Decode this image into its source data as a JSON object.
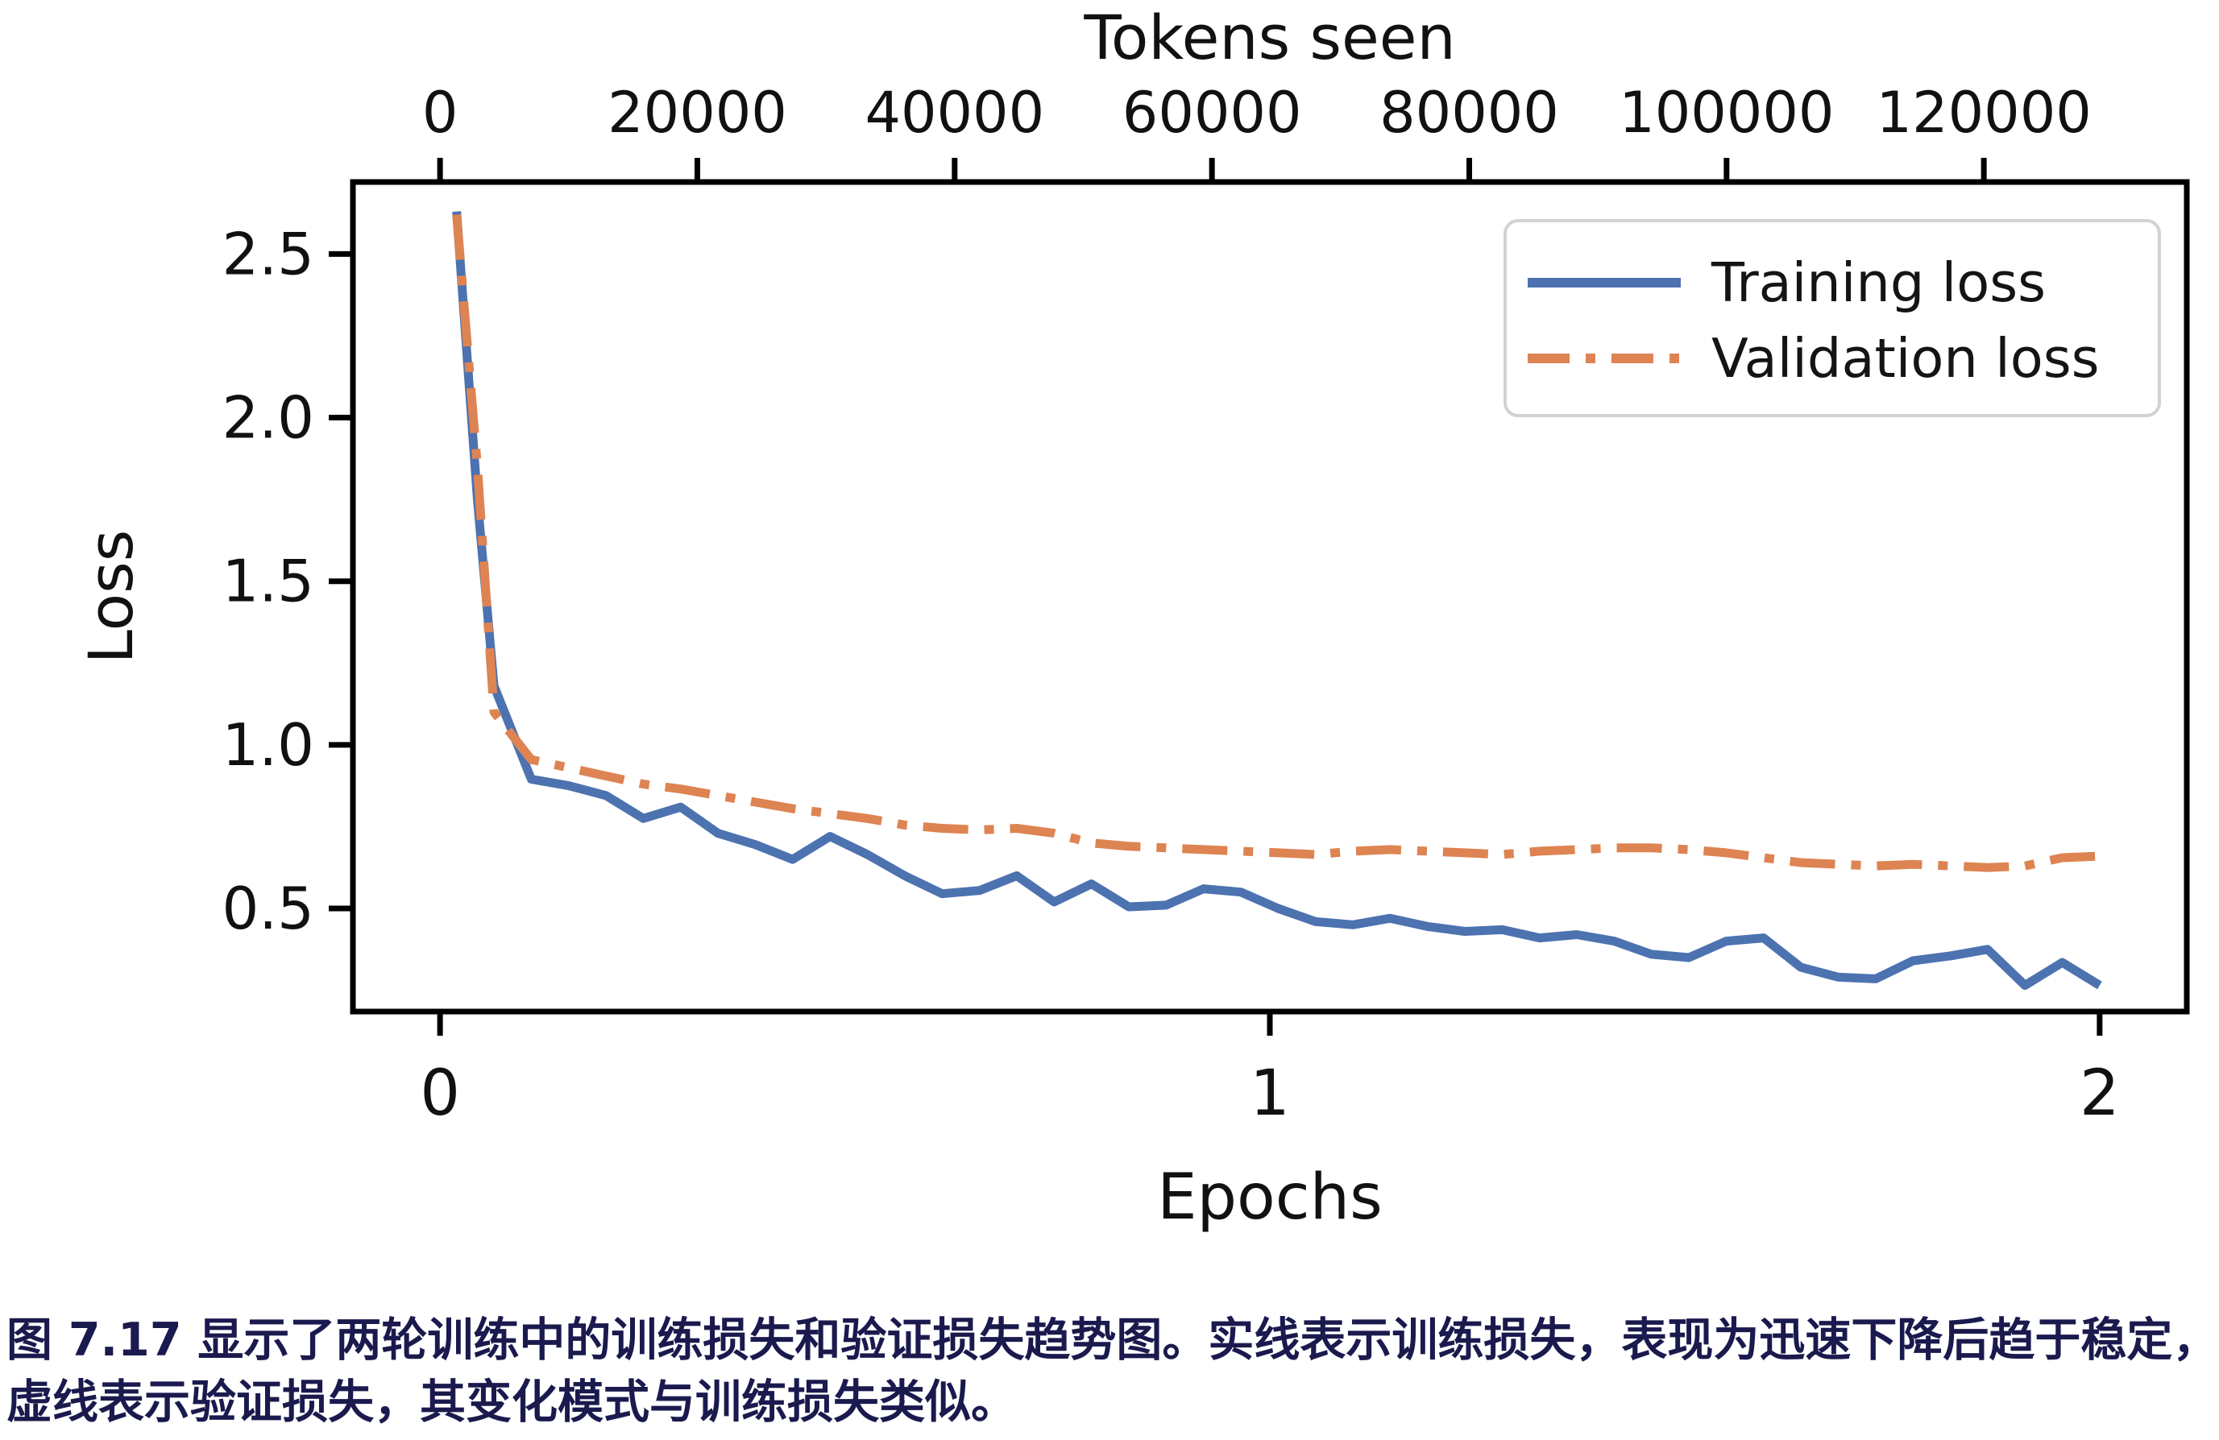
{
  "caption": {
    "line1": "图 7.17 显示了两轮训练中的训练损失和验证损失趋势图。实线表示训练损失，表现为迅速下降后趋于稳定，",
    "line2": "虚线表示验证损失，其变化模式与训练损失类似。",
    "color": "#1a1a4e"
  },
  "chart_data": {
    "type": "line",
    "top_axis_title": "Tokens seen",
    "xlabel": "Epochs",
    "ylabel": "Loss",
    "grid": false,
    "legend_position": "upper right",
    "x_range": [
      -0.105,
      2.105
    ],
    "y_range": [
      0.185,
      2.72
    ],
    "tokens_per_epoch": 64500,
    "x_ticks": [
      {
        "v": 0,
        "label": "0"
      },
      {
        "v": 1,
        "label": "1"
      },
      {
        "v": 2,
        "label": "2"
      }
    ],
    "y_ticks": [
      {
        "v": 0.5,
        "label": "0.5"
      },
      {
        "v": 1.0,
        "label": "1.0"
      },
      {
        "v": 1.5,
        "label": "1.5"
      },
      {
        "v": 2.0,
        "label": "2.0"
      },
      {
        "v": 2.5,
        "label": "2.5"
      }
    ],
    "top_ticks": [
      {
        "v": 0,
        "label": "0"
      },
      {
        "v": 20000,
        "label": "20000"
      },
      {
        "v": 40000,
        "label": "40000"
      },
      {
        "v": 60000,
        "label": "60000"
      },
      {
        "v": 80000,
        "label": "80000"
      },
      {
        "v": 100000,
        "label": "100000"
      },
      {
        "v": 120000,
        "label": "120000"
      }
    ],
    "series": [
      {
        "name": "Training loss",
        "color": "#4c72b0",
        "style": "solid",
        "x": [
          0.02,
          0.045,
          0.065,
          0.11,
          0.155,
          0.2,
          0.245,
          0.29,
          0.335,
          0.38,
          0.425,
          0.47,
          0.515,
          0.56,
          0.605,
          0.65,
          0.695,
          0.74,
          0.785,
          0.83,
          0.875,
          0.92,
          0.965,
          1.01,
          1.055,
          1.1,
          1.145,
          1.19,
          1.235,
          1.28,
          1.325,
          1.37,
          1.415,
          1.46,
          1.505,
          1.55,
          1.595,
          1.64,
          1.685,
          1.73,
          1.775,
          1.82,
          1.865,
          1.91,
          1.955,
          2.0
        ],
        "y": [
          2.63,
          1.75,
          1.18,
          0.895,
          0.875,
          0.845,
          0.775,
          0.81,
          0.73,
          0.695,
          0.65,
          0.72,
          0.665,
          0.6,
          0.545,
          0.555,
          0.6,
          0.52,
          0.575,
          0.505,
          0.51,
          0.56,
          0.55,
          0.5,
          0.46,
          0.45,
          0.47,
          0.445,
          0.43,
          0.435,
          0.41,
          0.42,
          0.4,
          0.36,
          0.35,
          0.4,
          0.41,
          0.32,
          0.29,
          0.285,
          0.34,
          0.355,
          0.375,
          0.265,
          0.335,
          0.265
        ]
      },
      {
        "name": "Validation loss",
        "color": "#dd8452",
        "style": "dash-dot",
        "x": [
          0.02,
          0.045,
          0.065,
          0.11,
          0.155,
          0.2,
          0.245,
          0.29,
          0.335,
          0.38,
          0.425,
          0.47,
          0.515,
          0.56,
          0.605,
          0.65,
          0.695,
          0.74,
          0.785,
          0.83,
          0.875,
          0.92,
          0.965,
          1.01,
          1.055,
          1.1,
          1.145,
          1.19,
          1.235,
          1.28,
          1.325,
          1.37,
          1.415,
          1.46,
          1.505,
          1.55,
          1.595,
          1.64,
          1.685,
          1.73,
          1.775,
          1.82,
          1.865,
          1.91,
          1.955,
          2.0
        ],
        "y": [
          2.62,
          1.85,
          1.1,
          0.955,
          0.93,
          0.905,
          0.88,
          0.865,
          0.845,
          0.825,
          0.805,
          0.79,
          0.775,
          0.755,
          0.745,
          0.74,
          0.745,
          0.73,
          0.7,
          0.69,
          0.685,
          0.68,
          0.675,
          0.67,
          0.665,
          0.675,
          0.68,
          0.675,
          0.67,
          0.665,
          0.675,
          0.68,
          0.685,
          0.685,
          0.68,
          0.67,
          0.655,
          0.64,
          0.635,
          0.63,
          0.635,
          0.63,
          0.625,
          0.63,
          0.655,
          0.66
        ]
      }
    ]
  }
}
